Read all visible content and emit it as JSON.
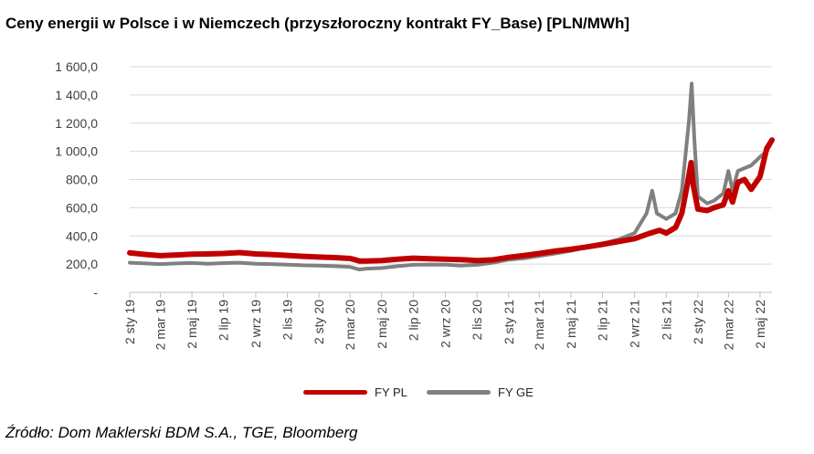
{
  "title": "Ceny energii w Polsce i w Niemczech (przyszłoroczny kontrakt FY_Base) [PLN/MWh]",
  "source": "Źródło: Dom Maklerski BDM S.A., TGE, Bloomberg",
  "colors": {
    "pl": "#c00000",
    "ge": "#808080",
    "axis": "#bfbfbf",
    "text": "#404040"
  },
  "chart_data": {
    "type": "line",
    "title": "Ceny energii w Polsce i w Niemczech (przyszłoroczny kontrakt FY_Base) [PLN/MWh]",
    "xlabel": "",
    "ylabel": "",
    "ylim": [
      0,
      1600
    ],
    "y_ticks": [
      {
        "value": 0,
        "label": "-"
      },
      {
        "value": 200,
        "label": "200,0"
      },
      {
        "value": 400,
        "label": "400,0"
      },
      {
        "value": 600,
        "label": "600,0"
      },
      {
        "value": 800,
        "label": "800,0"
      },
      {
        "value": 1000,
        "label": "1 000,0"
      },
      {
        "value": 1200,
        "label": "1 200,0"
      },
      {
        "value": 1400,
        "label": "1 400,0"
      },
      {
        "value": 1600,
        "label": "1 600,0"
      }
    ],
    "x_range": [
      "2019-01-02",
      "2022-05-25"
    ],
    "x_ticks": [
      {
        "date": "2019-01-02",
        "label": "2 sty 19"
      },
      {
        "date": "2019-03-02",
        "label": "2 mar 19"
      },
      {
        "date": "2019-05-02",
        "label": "2 maj 19"
      },
      {
        "date": "2019-07-02",
        "label": "2 lip 19"
      },
      {
        "date": "2019-09-02",
        "label": "2 wrz 19"
      },
      {
        "date": "2019-11-02",
        "label": "2 lis 19"
      },
      {
        "date": "2020-01-02",
        "label": "2 sty 20"
      },
      {
        "date": "2020-03-02",
        "label": "2 mar 20"
      },
      {
        "date": "2020-05-02",
        "label": "2 maj 20"
      },
      {
        "date": "2020-07-02",
        "label": "2 lip 20"
      },
      {
        "date": "2020-09-02",
        "label": "2 wrz 20"
      },
      {
        "date": "2020-11-02",
        "label": "2 lis 20"
      },
      {
        "date": "2021-01-02",
        "label": "2 sty 21"
      },
      {
        "date": "2021-03-02",
        "label": "2 mar 21"
      },
      {
        "date": "2021-05-02",
        "label": "2 maj 21"
      },
      {
        "date": "2021-07-02",
        "label": "2 lip 21"
      },
      {
        "date": "2021-09-02",
        "label": "2 wrz 21"
      },
      {
        "date": "2021-11-02",
        "label": "2 lis 21"
      },
      {
        "date": "2022-01-02",
        "label": "2 sty 22"
      },
      {
        "date": "2022-03-02",
        "label": "2 mar 22"
      },
      {
        "date": "2022-05-02",
        "label": "2 maj 22"
      }
    ],
    "grid": true,
    "legend_position": "bottom-center",
    "series": [
      {
        "name": "FY PL",
        "color": "#c00000",
        "points": [
          [
            "2019-01-02",
            280
          ],
          [
            "2019-02-02",
            268
          ],
          [
            "2019-03-02",
            260
          ],
          [
            "2019-04-02",
            265
          ],
          [
            "2019-05-02",
            270
          ],
          [
            "2019-06-02",
            272
          ],
          [
            "2019-07-02",
            275
          ],
          [
            "2019-08-02",
            282
          ],
          [
            "2019-09-02",
            272
          ],
          [
            "2019-10-02",
            268
          ],
          [
            "2019-11-02",
            262
          ],
          [
            "2019-12-02",
            255
          ],
          [
            "2020-01-02",
            250
          ],
          [
            "2020-02-02",
            246
          ],
          [
            "2020-03-02",
            240
          ],
          [
            "2020-03-20",
            222
          ],
          [
            "2020-04-02",
            222
          ],
          [
            "2020-05-02",
            225
          ],
          [
            "2020-06-02",
            235
          ],
          [
            "2020-07-02",
            242
          ],
          [
            "2020-08-02",
            238
          ],
          [
            "2020-09-02",
            235
          ],
          [
            "2020-10-02",
            232
          ],
          [
            "2020-11-02",
            225
          ],
          [
            "2020-12-02",
            230
          ],
          [
            "2021-01-02",
            248
          ],
          [
            "2021-02-02",
            262
          ],
          [
            "2021-03-02",
            275
          ],
          [
            "2021-04-02",
            292
          ],
          [
            "2021-05-02",
            305
          ],
          [
            "2021-06-02",
            322
          ],
          [
            "2021-07-02",
            340
          ],
          [
            "2021-08-02",
            360
          ],
          [
            "2021-09-02",
            380
          ],
          [
            "2021-10-02",
            420
          ],
          [
            "2021-10-20",
            440
          ],
          [
            "2021-11-02",
            420
          ],
          [
            "2021-11-20",
            460
          ],
          [
            "2021-12-02",
            560
          ],
          [
            "2021-12-12",
            750
          ],
          [
            "2021-12-20",
            920
          ],
          [
            "2021-12-24",
            760
          ],
          [
            "2022-01-02",
            590
          ],
          [
            "2022-01-20",
            580
          ],
          [
            "2022-02-02",
            600
          ],
          [
            "2022-02-20",
            620
          ],
          [
            "2022-03-02",
            720
          ],
          [
            "2022-03-10",
            640
          ],
          [
            "2022-03-20",
            780
          ],
          [
            "2022-04-02",
            800
          ],
          [
            "2022-04-15",
            730
          ],
          [
            "2022-05-02",
            820
          ],
          [
            "2022-05-15",
            1020
          ],
          [
            "2022-05-25",
            1080
          ]
        ]
      },
      {
        "name": "FY GE",
        "color": "#808080",
        "points": [
          [
            "2019-01-02",
            210
          ],
          [
            "2019-02-02",
            205
          ],
          [
            "2019-03-02",
            200
          ],
          [
            "2019-04-02",
            205
          ],
          [
            "2019-05-02",
            208
          ],
          [
            "2019-06-02",
            203
          ],
          [
            "2019-07-02",
            207
          ],
          [
            "2019-08-02",
            210
          ],
          [
            "2019-09-02",
            203
          ],
          [
            "2019-10-02",
            200
          ],
          [
            "2019-11-02",
            196
          ],
          [
            "2019-12-02",
            192
          ],
          [
            "2020-01-02",
            190
          ],
          [
            "2020-02-02",
            185
          ],
          [
            "2020-03-02",
            180
          ],
          [
            "2020-03-20",
            162
          ],
          [
            "2020-04-02",
            168
          ],
          [
            "2020-05-02",
            172
          ],
          [
            "2020-06-02",
            185
          ],
          [
            "2020-07-02",
            195
          ],
          [
            "2020-08-02",
            197
          ],
          [
            "2020-09-02",
            196
          ],
          [
            "2020-10-02",
            190
          ],
          [
            "2020-11-02",
            195
          ],
          [
            "2020-12-02",
            210
          ],
          [
            "2021-01-02",
            232
          ],
          [
            "2021-02-02",
            242
          ],
          [
            "2021-03-02",
            258
          ],
          [
            "2021-04-02",
            275
          ],
          [
            "2021-05-02",
            295
          ],
          [
            "2021-06-02",
            320
          ],
          [
            "2021-07-02",
            345
          ],
          [
            "2021-08-02",
            375
          ],
          [
            "2021-09-02",
            420
          ],
          [
            "2021-09-25",
            560
          ],
          [
            "2021-10-06",
            720
          ],
          [
            "2021-10-15",
            560
          ],
          [
            "2021-11-02",
            520
          ],
          [
            "2021-11-20",
            560
          ],
          [
            "2021-12-02",
            720
          ],
          [
            "2021-12-10",
            1000
          ],
          [
            "2021-12-16",
            1220
          ],
          [
            "2021-12-21",
            1480
          ],
          [
            "2021-12-26",
            1100
          ],
          [
            "2022-01-02",
            680
          ],
          [
            "2022-01-20",
            630
          ],
          [
            "2022-02-02",
            650
          ],
          [
            "2022-02-20",
            700
          ],
          [
            "2022-03-02",
            860
          ],
          [
            "2022-03-10",
            720
          ],
          [
            "2022-03-20",
            860
          ],
          [
            "2022-04-02",
            880
          ],
          [
            "2022-04-15",
            900
          ],
          [
            "2022-05-02",
            960
          ],
          [
            "2022-05-15",
            1000
          ],
          [
            "2022-05-25",
            1070
          ]
        ]
      }
    ]
  }
}
